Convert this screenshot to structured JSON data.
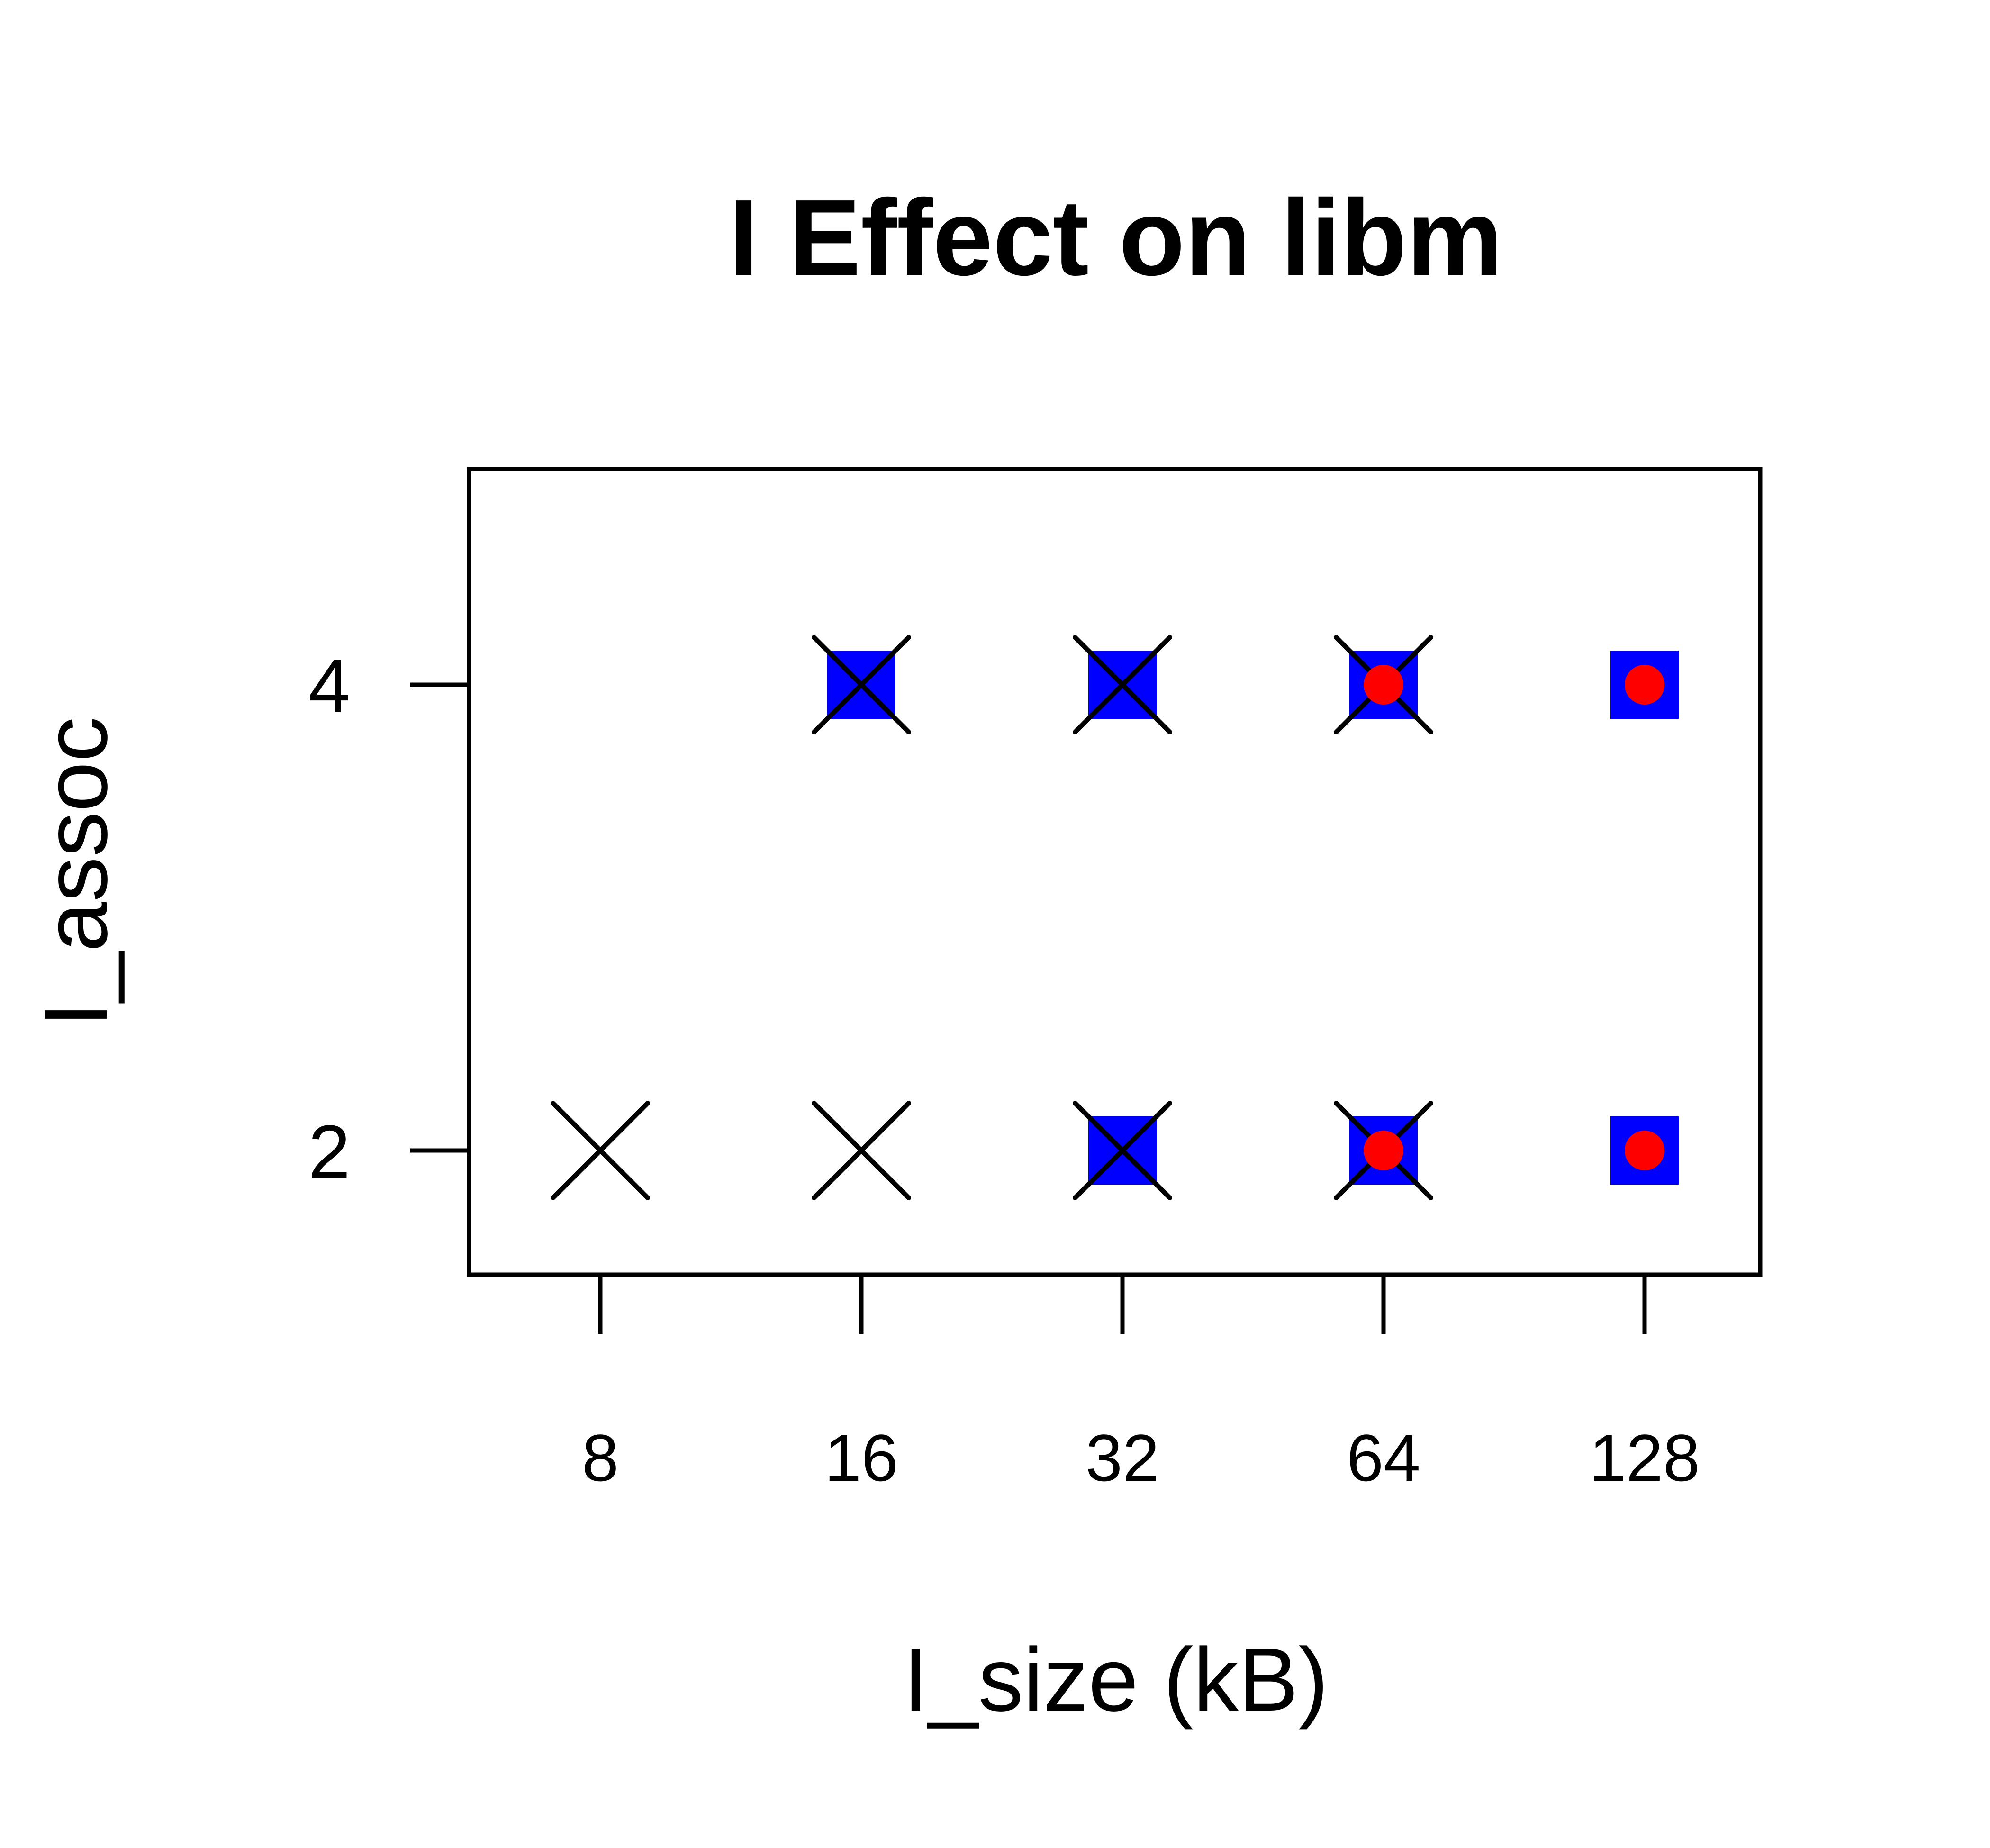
{
  "chart_data": {
    "type": "scatter",
    "title": "I Effect on libm",
    "xlabel": "I_size (kB)",
    "ylabel": "I_assoc",
    "x_categories": [
      "8",
      "16",
      "32",
      "64",
      "128"
    ],
    "y_ticks": [
      "2",
      "4"
    ],
    "series": [
      {
        "marker": "x",
        "color": "#000000",
        "points": [
          {
            "x": "8",
            "y": "2"
          },
          {
            "x": "16",
            "y": "2"
          },
          {
            "x": "16",
            "y": "4"
          },
          {
            "x": "32",
            "y": "2"
          },
          {
            "x": "32",
            "y": "4"
          },
          {
            "x": "64",
            "y": "2"
          },
          {
            "x": "64",
            "y": "4"
          }
        ]
      },
      {
        "marker": "filled-square",
        "color": "#0000ff",
        "points": [
          {
            "x": "16",
            "y": "4"
          },
          {
            "x": "32",
            "y": "2"
          },
          {
            "x": "32",
            "y": "4"
          },
          {
            "x": "64",
            "y": "2"
          },
          {
            "x": "64",
            "y": "4"
          },
          {
            "x": "128",
            "y": "2"
          },
          {
            "x": "128",
            "y": "4"
          }
        ]
      },
      {
        "marker": "filled-circle",
        "color": "#ff0000",
        "points": [
          {
            "x": "64",
            "y": "2"
          },
          {
            "x": "64",
            "y": "4"
          },
          {
            "x": "128",
            "y": "2"
          },
          {
            "x": "128",
            "y": "4"
          }
        ]
      }
    ],
    "grid": false,
    "legend": "none"
  }
}
